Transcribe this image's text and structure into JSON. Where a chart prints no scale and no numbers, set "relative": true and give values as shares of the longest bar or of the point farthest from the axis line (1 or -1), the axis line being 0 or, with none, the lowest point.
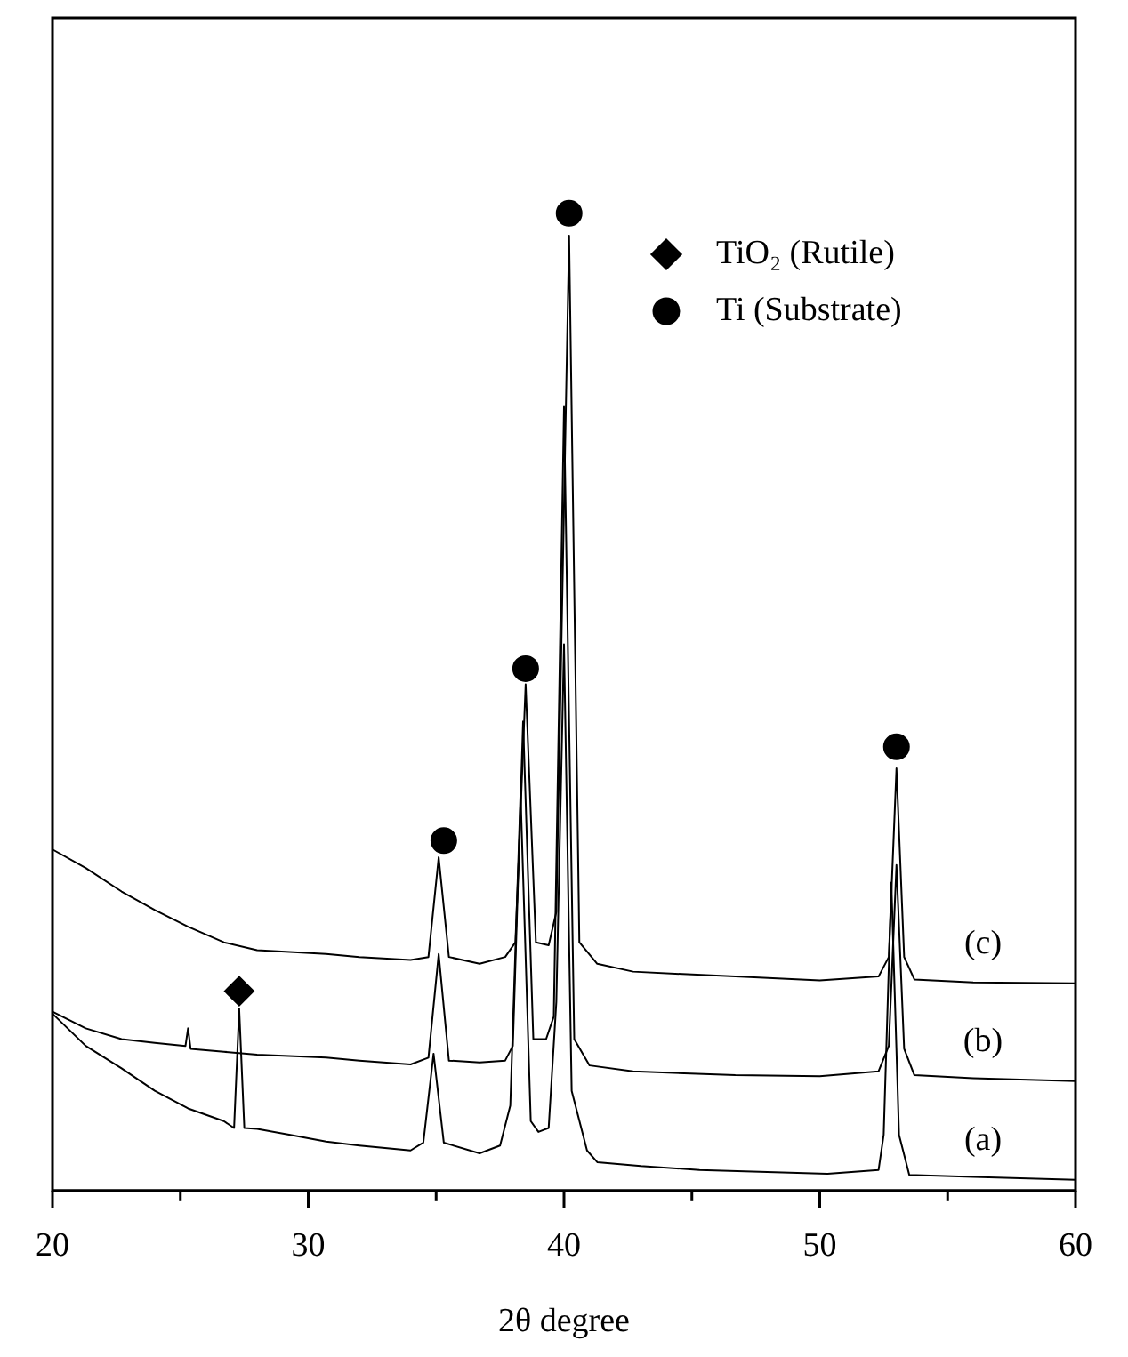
{
  "chart_data": {
    "type": "line",
    "xlabel": "2θ degree",
    "relative": true,
    "xlim": [
      20,
      60
    ],
    "xticks": [
      20,
      {
        "value": 25,
        "label": null
      },
      30,
      {
        "value": 35,
        "label": null
      },
      40,
      {
        "value": 45,
        "label": null
      },
      50,
      {
        "value": 55,
        "label": null
      },
      60
    ],
    "grid": false,
    "legend": "top right",
    "marker": "none",
    "line_style": "solid",
    "series": [
      {
        "name": "(a)",
        "color": "#000000",
        "x": [
          20.0,
          21.3,
          22.7,
          24.0,
          25.3,
          26.7,
          27.1,
          27.3,
          27.5,
          28.0,
          29.3,
          30.7,
          32.0,
          34.0,
          34.5,
          34.9,
          35.3,
          36.7,
          37.5,
          37.9,
          38.3,
          38.7,
          39.0,
          39.4,
          39.7,
          40.0,
          40.3,
          40.9,
          41.3,
          43.0,
          45.3,
          50.3,
          52.3,
          52.5,
          52.8,
          53.1,
          53.5,
          56.0,
          60.0
        ],
        "values": [
          0.181,
          0.148,
          0.125,
          0.102,
          0.084,
          0.071,
          0.064,
          0.186,
          0.064,
          0.063,
          0.057,
          0.05,
          0.046,
          0.041,
          0.049,
          0.14,
          0.049,
          0.038,
          0.046,
          0.087,
          0.407,
          0.071,
          0.06,
          0.064,
          0.193,
          0.559,
          0.102,
          0.041,
          0.029,
          0.025,
          0.021,
          0.017,
          0.021,
          0.057,
          0.315,
          0.057,
          0.016,
          0.014,
          0.011
        ]
      },
      {
        "name": "(b)",
        "color": "#000000",
        "x": [
          20.0,
          21.3,
          22.7,
          24.0,
          25.2,
          25.3,
          25.4,
          26.7,
          28.0,
          30.7,
          32.0,
          34.0,
          34.7,
          35.1,
          35.5,
          36.7,
          37.7,
          38.0,
          38.4,
          38.8,
          39.3,
          39.6,
          40.0,
          40.4,
          41.0,
          42.7,
          46.7,
          50.0,
          52.3,
          52.7,
          53.0,
          53.3,
          53.7,
          56.0,
          60.0
        ],
        "values": [
          0.183,
          0.166,
          0.155,
          0.151,
          0.148,
          0.166,
          0.145,
          0.142,
          0.139,
          0.136,
          0.133,
          0.129,
          0.136,
          0.242,
          0.133,
          0.131,
          0.133,
          0.148,
          0.48,
          0.155,
          0.155,
          0.178,
          0.802,
          0.155,
          0.128,
          0.122,
          0.118,
          0.117,
          0.122,
          0.148,
          0.333,
          0.145,
          0.118,
          0.115,
          0.112
        ]
      },
      {
        "name": "(c)",
        "color": "#000000",
        "x": [
          20.0,
          21.3,
          22.7,
          24.0,
          25.3,
          26.7,
          28.0,
          30.7,
          32.0,
          34.0,
          34.7,
          35.1,
          35.5,
          36.7,
          37.7,
          38.1,
          38.5,
          38.9,
          39.4,
          39.7,
          40.2,
          40.6,
          41.3,
          42.7,
          46.7,
          50.0,
          52.3,
          52.7,
          53.0,
          53.3,
          53.7,
          56.0,
          60.0
        ],
        "values": [
          0.349,
          0.33,
          0.306,
          0.287,
          0.27,
          0.254,
          0.246,
          0.242,
          0.239,
          0.236,
          0.239,
          0.341,
          0.239,
          0.232,
          0.239,
          0.254,
          0.518,
          0.254,
          0.251,
          0.285,
          0.977,
          0.254,
          0.232,
          0.224,
          0.219,
          0.215,
          0.219,
          0.239,
          0.432,
          0.239,
          0.216,
          0.213,
          0.212
        ]
      },
      {
        "name": "TiO₂ (Rutile)",
        "type": "scatter",
        "marker": "diamond",
        "color": "#000000",
        "x": [
          27.3
        ],
        "values": [
          0.204
        ]
      },
      {
        "name": "Ti (Substrate)",
        "type": "scatter",
        "marker": "circle",
        "color": "#000000",
        "x": [
          35.3,
          38.5,
          40.2,
          53.0
        ],
        "values": [
          0.358,
          0.534,
          1,
          0.454
        ]
      }
    ]
  }
}
